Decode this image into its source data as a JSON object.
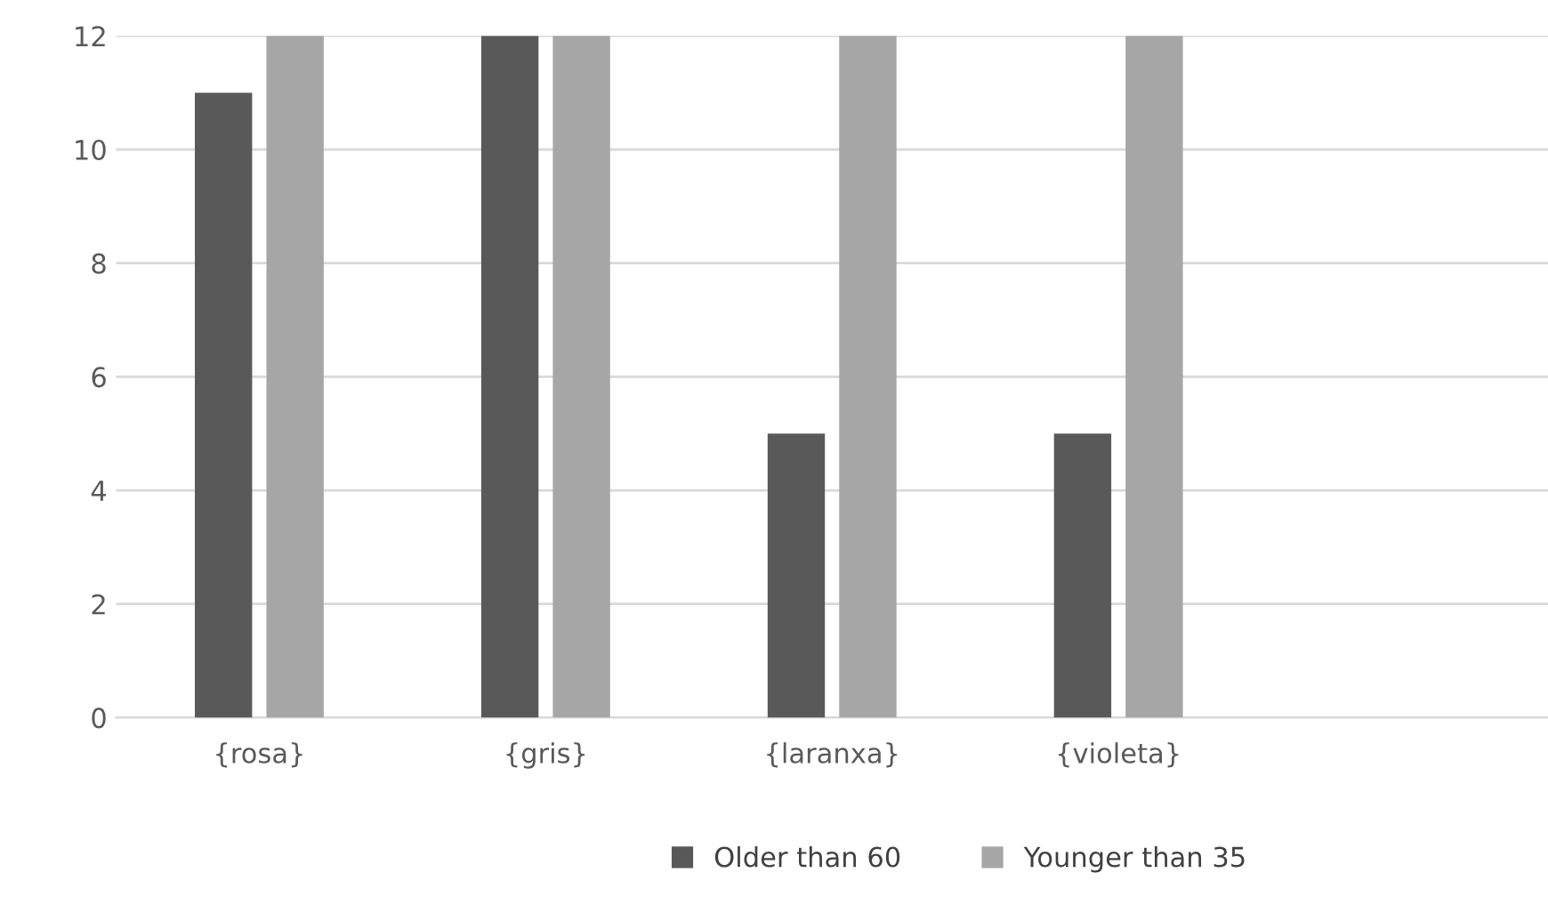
{
  "chart_data": {
    "type": "bar",
    "categories": [
      "{rosa}",
      "{gris}",
      "{laranxa}",
      "{violeta}",
      null
    ],
    "series": [
      {
        "name": "Older than 60",
        "color": "#595959",
        "values": [
          11,
          12,
          5,
          5,
          null
        ]
      },
      {
        "name": "Younger than 35",
        "color": "#a6a6a6",
        "values": [
          12,
          12,
          12,
          12,
          null
        ]
      }
    ],
    "ylim": [
      0,
      12
    ],
    "yticks": [
      0,
      2,
      4,
      6,
      8,
      10,
      12
    ],
    "grid": "y",
    "legend": "bottom"
  }
}
